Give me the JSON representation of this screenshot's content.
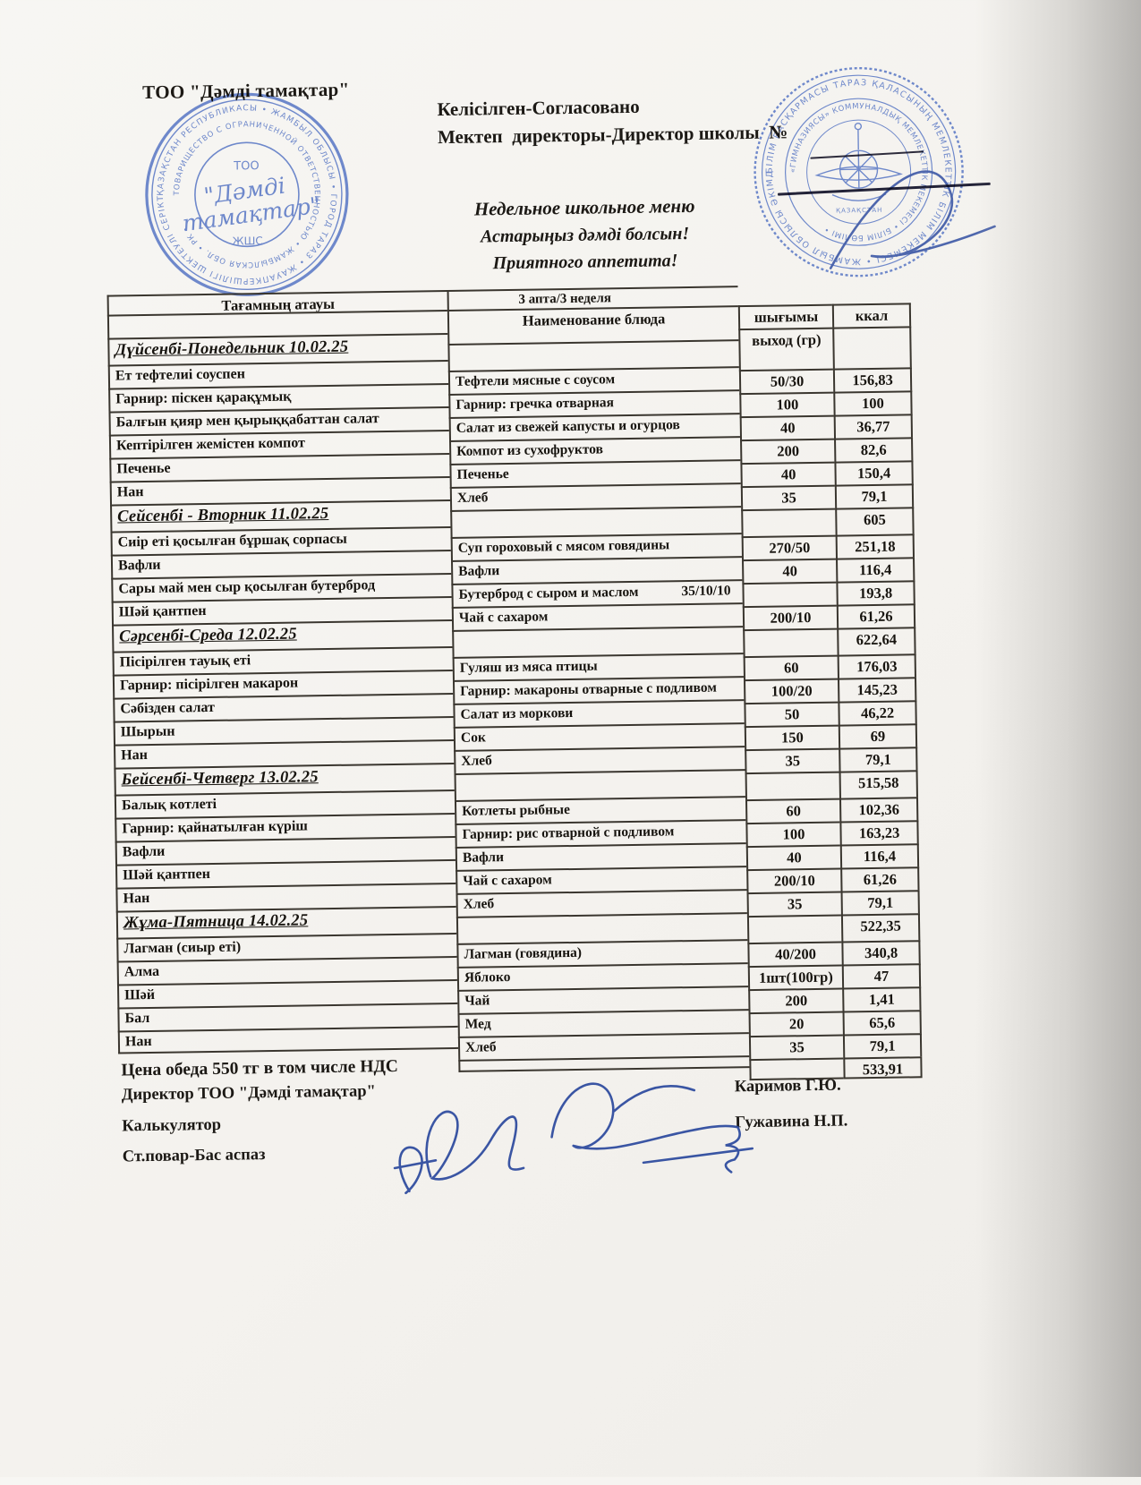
{
  "header": {
    "company": "ТОО \"Дәмді тамақтар\"",
    "agreed": "Келісілген-Согласовано",
    "director_line": "Мектеп  директоры-Директор школы  №",
    "menu_title": "Недельное школьное меню",
    "wish_kk": "Астарыңыз дәмді болсын!",
    "wish_ru": "Приятного аппетита!"
  },
  "table": {
    "caption": "3 апта/3 неделя",
    "col_name_kk": "Тағамның атауы",
    "col_name_ru": "Наименование блюда",
    "col_out_kk": "шығымы",
    "col_out_ru": "выход (гр)",
    "col_kcal": "ккал",
    "days": [
      {
        "title": "Дүйсенбі-Понедельник 10.02.25",
        "total": "605",
        "dishes": [
          {
            "kk": "Ет тефтелиі соуспен",
            "ru": "Тефтели мясные с соусом",
            "portion": "50/30",
            "kcal": "156,83"
          },
          {
            "kk": "Гарнир: піскен қарақұмық",
            "ru": "Гарнир: гречка отварная",
            "portion": "100",
            "kcal": "100"
          },
          {
            "kk": "Балғын қияр мен қырыққабаттан салат",
            "ru": "Салат из свежей капусты и огурцов",
            "portion": "40",
            "kcal": "36,77"
          },
          {
            "kk": "Кептірілген жемістен компот",
            "ru": "Компот из сухофруктов",
            "portion": "200",
            "kcal": "82,6"
          },
          {
            "kk": "Печенье",
            "ru": "Печенье",
            "portion": "40",
            "kcal": "150,4"
          },
          {
            "kk": "Нан",
            "ru": "Хлеб",
            "portion": "35",
            "kcal": "79,1"
          }
        ]
      },
      {
        "title": "Сейсенбі - Вторник 11.02.25",
        "total": "622,64",
        "dishes": [
          {
            "kk": "Сиір еті қосылған бұршақ сорпасы",
            "ru": "Суп гороховый с мясом говядины",
            "portion": "270/50",
            "kcal": "251,18"
          },
          {
            "kk": "Вафли",
            "ru": "Вафли",
            "portion": "40",
            "kcal": "116,4"
          },
          {
            "kk": "Сары май мен сыр қосылған бутерброд",
            "ru": "Бутерброд с сыром и маслом",
            "portion": "35/10/10",
            "kcal": "193,8",
            "portion_inline": true
          },
          {
            "kk": "Шәй қантпен",
            "ru": "Чай с сахаром",
            "portion": "200/10",
            "kcal": "61,26"
          }
        ]
      },
      {
        "title": "Сәрсенбі-Среда 12.02.25",
        "total": "515,58",
        "dishes": [
          {
            "kk": "Пісірілген тауық еті",
            "ru": "Гуляш из мяса птицы",
            "portion": "60",
            "kcal": "176,03"
          },
          {
            "kk": "Гарнир: пісірілген макарон",
            "ru": "Гарнир: макароны отварные с подливом",
            "portion": "100/20",
            "kcal": "145,23"
          },
          {
            "kk": "Сәбізден салат",
            "ru": "Салат из моркови",
            "portion": "50",
            "kcal": "46,22"
          },
          {
            "kk": "Шырын",
            "ru": "Сок",
            "portion": "150",
            "kcal": "69"
          },
          {
            "kk": "Нан",
            "ru": "Хлеб",
            "portion": "35",
            "kcal": "79,1"
          }
        ]
      },
      {
        "title": "Бейсенбі-Четверг 13.02.25",
        "total": "522,35",
        "dishes": [
          {
            "kk": "Балық котлеті",
            "ru": "Котлеты рыбные",
            "portion": "60",
            "kcal": "102,36"
          },
          {
            "kk": "Гарнир: қайнатылған күріш",
            "ru": "Гарнир: рис отварной с подливом",
            "portion": "100",
            "kcal": "163,23"
          },
          {
            "kk": "Вафли",
            "ru": "Вафли",
            "portion": "40",
            "kcal": "116,4"
          },
          {
            "kk": "Шәй қантпен",
            "ru": "Чай с сахаром",
            "portion": "200/10",
            "kcal": "61,26"
          },
          {
            "kk": "Нан",
            "ru": "Хлеб",
            "portion": "35",
            "kcal": "79,1"
          }
        ]
      },
      {
        "title": "Жұма-Пятница 14.02.25",
        "total": "533,91",
        "dishes": [
          {
            "kk": "Лагман (сиыр еті)",
            "ru": "Лагман (говядина)",
            "portion": "40/200",
            "kcal": "340,8"
          },
          {
            "kk": "Алма",
            "ru": "Яблоко",
            "portion": "1шт(100гр)",
            "kcal": "47"
          },
          {
            "kk": "Шәй",
            "ru": "Чай",
            "portion": "200",
            "kcal": "1,41"
          },
          {
            "kk": "Бал",
            "ru": "Мед",
            "portion": "20",
            "kcal": "65,6"
          },
          {
            "kk": "Нан",
            "ru": "Хлеб",
            "portion": "35",
            "kcal": "79,1"
          }
        ]
      }
    ]
  },
  "footer": {
    "price_line": "Цена обеда 550 тг в том числе НДС",
    "roles": [
      "Директор ТОО \"Дәмді тамақтар\"",
      "Калькулятор",
      "Ст.повар-Бас аспаз"
    ],
    "names": [
      "Каримов Г.Ю.",
      "Гужавина Н.П."
    ]
  },
  "stamp_left": {
    "ring_outer": "ҚАЗАҚСТАН РЕСПУБЛИКАСЫ • ЖАМБЫЛ ОБЛЫСЫ • ГОРОД ТАРАЗ • ЖАУАПКЕРШІЛІГІ ШЕКТЕУЛІ СЕРІКТЕСТІГІ",
    "ring_inner": "ТОВАРИЩЕСТВО С ОГРАНИЧЕННОЙ ОТВЕТСТВЕННОСТЬЮ • ЖАМБЫЛСКАЯ ОБЛ. • РК •",
    "center_top": "ТОО",
    "center_name1": "\"Дәмді",
    "center_name2": "тамақтар\"",
    "center_bottom": "ЖШС"
  },
  "stamp_right": {
    "ring_outer": "БІЛІМ БАСҚАРМАСЫ ТАРАЗ ҚАЛАСЫНЫҢ МЕМЛЕКЕТТІК БІЛІМ МЕКЕМЕСІ • ЖАМБЫЛ ОБЛЫСЫ ӘКІМДІГІНІҢ •",
    "ring_inner": "«ГИМНАЗИЯСЫ» КОММУНАЛДЫҚ МЕМЛЕКЕТТІК МЕКЕМЕСІ • БІЛІМ БӨЛІМІ •",
    "emblem_label": "ҚАЗАҚСТАН"
  },
  "colors": {
    "paper": "#f6f4f0",
    "text": "#1c1915",
    "table_border": "#3a362f",
    "stamp_ink": "#5b79c5",
    "signature_ink": "#2c4a9e"
  }
}
